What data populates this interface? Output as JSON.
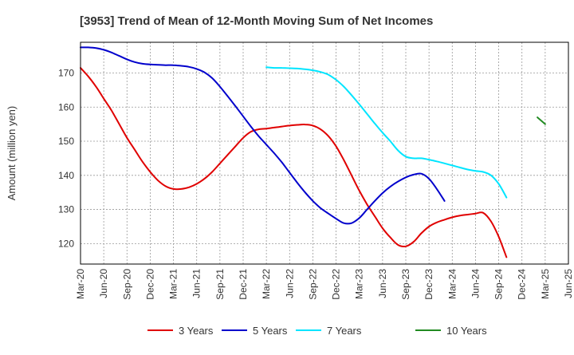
{
  "chart_data": {
    "type": "line",
    "title": "[3953]  Trend of Mean of 12-Month Moving Sum of Net Incomes",
    "xlabel": "",
    "ylabel": "Amount (million yen)",
    "xlim": [
      0,
      63
    ],
    "ylim": [
      114,
      179
    ],
    "grid": true,
    "legend_position": "bottom",
    "x_ticks": [
      {
        "i": 0,
        "label": "Mar-20"
      },
      {
        "i": 3,
        "label": "Jun-20"
      },
      {
        "i": 6,
        "label": "Sep-20"
      },
      {
        "i": 9,
        "label": "Dec-20"
      },
      {
        "i": 12,
        "label": "Mar-21"
      },
      {
        "i": 15,
        "label": "Jun-21"
      },
      {
        "i": 18,
        "label": "Sep-21"
      },
      {
        "i": 21,
        "label": "Dec-21"
      },
      {
        "i": 24,
        "label": "Mar-22"
      },
      {
        "i": 27,
        "label": "Jun-22"
      },
      {
        "i": 30,
        "label": "Sep-22"
      },
      {
        "i": 33,
        "label": "Dec-22"
      },
      {
        "i": 36,
        "label": "Mar-23"
      },
      {
        "i": 39,
        "label": "Jun-23"
      },
      {
        "i": 42,
        "label": "Sep-23"
      },
      {
        "i": 45,
        "label": "Dec-23"
      },
      {
        "i": 48,
        "label": "Mar-24"
      },
      {
        "i": 51,
        "label": "Jun-24"
      },
      {
        "i": 54,
        "label": "Sep-24"
      },
      {
        "i": 57,
        "label": "Dec-24"
      },
      {
        "i": 60,
        "label": "Mar-25"
      },
      {
        "i": 63,
        "label": "Jun-25"
      }
    ],
    "y_ticks": [
      120,
      130,
      140,
      150,
      160,
      170
    ],
    "series": [
      {
        "name": "3 Years",
        "color": "#e00000",
        "points": [
          [
            0,
            171.5
          ],
          [
            1,
            169
          ],
          [
            2,
            166
          ],
          [
            3,
            162.5
          ],
          [
            4,
            159
          ],
          [
            5,
            155
          ],
          [
            6,
            151
          ],
          [
            7,
            147.5
          ],
          [
            8,
            144
          ],
          [
            9,
            141
          ],
          [
            10,
            138.5
          ],
          [
            11,
            136.8
          ],
          [
            12,
            136
          ],
          [
            13,
            136
          ],
          [
            14,
            136.5
          ],
          [
            15,
            137.5
          ],
          [
            16,
            139
          ],
          [
            17,
            141
          ],
          [
            18,
            143.5
          ],
          [
            19,
            146
          ],
          [
            20,
            148.5
          ],
          [
            21,
            151
          ],
          [
            22,
            152.8
          ],
          [
            23,
            153.5
          ],
          [
            24,
            153.7
          ],
          [
            25,
            154
          ],
          [
            26,
            154.3
          ],
          [
            27,
            154.6
          ],
          [
            28,
            154.8
          ],
          [
            29,
            154.9
          ],
          [
            30,
            154.6
          ],
          [
            31,
            153.5
          ],
          [
            32,
            151.5
          ],
          [
            33,
            148.5
          ],
          [
            34,
            144.5
          ],
          [
            35,
            140
          ],
          [
            36,
            135.5
          ],
          [
            37,
            131.5
          ],
          [
            38,
            128
          ],
          [
            39,
            124.5
          ],
          [
            40,
            121.8
          ],
          [
            41,
            119.6
          ],
          [
            42,
            119.2
          ],
          [
            43,
            120.5
          ],
          [
            44,
            123
          ],
          [
            45,
            125
          ],
          [
            46,
            126.2
          ],
          [
            47,
            127
          ],
          [
            48,
            127.7
          ],
          [
            49,
            128.2
          ],
          [
            50,
            128.5
          ],
          [
            51,
            128.8
          ],
          [
            52,
            129
          ],
          [
            53,
            126.5
          ],
          [
            54,
            122
          ],
          [
            55,
            116
          ]
        ]
      },
      {
        "name": "5 Years",
        "color": "#0000cc",
        "points": [
          [
            0,
            177.5
          ],
          [
            1,
            177.5
          ],
          [
            2,
            177.3
          ],
          [
            3,
            176.8
          ],
          [
            4,
            176
          ],
          [
            5,
            175
          ],
          [
            6,
            174
          ],
          [
            7,
            173.2
          ],
          [
            8,
            172.7
          ],
          [
            9,
            172.5
          ],
          [
            10,
            172.4
          ],
          [
            11,
            172.3
          ],
          [
            12,
            172.3
          ],
          [
            13,
            172.1
          ],
          [
            14,
            171.8
          ],
          [
            15,
            171.2
          ],
          [
            16,
            170.2
          ],
          [
            17,
            168.5
          ],
          [
            18,
            166
          ],
          [
            19,
            163.2
          ],
          [
            20,
            160.3
          ],
          [
            21,
            157.3
          ],
          [
            22,
            154.3
          ],
          [
            23,
            151.5
          ],
          [
            24,
            149
          ],
          [
            25,
            146.5
          ],
          [
            26,
            143.8
          ],
          [
            27,
            140.8
          ],
          [
            28,
            137.8
          ],
          [
            29,
            135
          ],
          [
            30,
            132.5
          ],
          [
            31,
            130.4
          ],
          [
            32,
            128.8
          ],
          [
            33,
            127.3
          ],
          [
            34,
            126
          ],
          [
            35,
            126
          ],
          [
            36,
            127.5
          ],
          [
            37,
            130
          ],
          [
            38,
            132.5
          ],
          [
            39,
            134.8
          ],
          [
            40,
            136.7
          ],
          [
            41,
            138.2
          ],
          [
            42,
            139.4
          ],
          [
            43,
            140.2
          ],
          [
            44,
            140.5
          ],
          [
            45,
            139
          ],
          [
            46,
            136
          ],
          [
            47,
            132.5
          ]
        ]
      },
      {
        "name": "7 Years",
        "color": "#00e5ff",
        "points": [
          [
            0,
            171.7
          ],
          [
            1,
            171.5
          ],
          [
            2,
            171.5
          ],
          [
            3,
            171.4
          ],
          [
            4,
            171.3
          ],
          [
            5,
            171.1
          ],
          [
            6,
            170.8
          ],
          [
            7,
            170.3
          ],
          [
            8,
            169.5
          ],
          [
            9,
            168
          ],
          [
            10,
            166
          ],
          [
            11,
            163.5
          ],
          [
            12,
            160.8
          ],
          [
            13,
            158
          ],
          [
            14,
            155.2
          ],
          [
            15,
            152.5
          ],
          [
            16,
            150
          ],
          [
            17,
            147.3
          ],
          [
            18,
            145.5
          ],
          [
            19,
            145
          ],
          [
            20,
            145
          ],
          [
            21,
            144.6
          ],
          [
            22,
            144.1
          ],
          [
            23,
            143.5
          ],
          [
            24,
            142.9
          ],
          [
            25,
            142.3
          ],
          [
            26,
            141.7
          ],
          [
            27,
            141.3
          ],
          [
            28,
            141
          ],
          [
            29,
            140
          ],
          [
            30,
            137.5
          ],
          [
            31,
            133.5
          ]
        ]
      },
      {
        "name": "10 Years",
        "color": "#228b22",
        "points": [
          [
            0,
            157
          ],
          [
            1,
            155
          ]
        ]
      }
    ],
    "series_start_index": [
      0,
      0,
      24,
      59
    ]
  }
}
